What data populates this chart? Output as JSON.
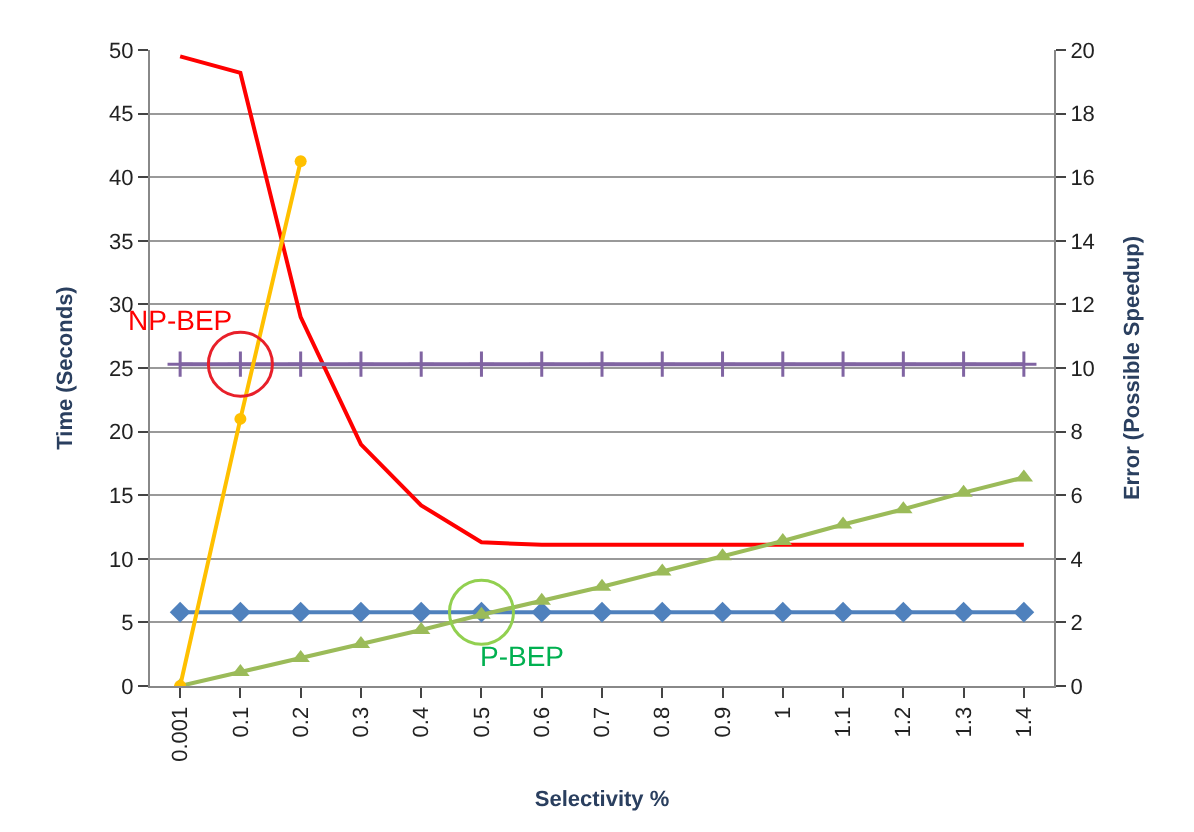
{
  "chart_data": {
    "type": "line",
    "xlabel": "Selectivity %",
    "ylabel": "Time (Seconds)",
    "y2label": "Error (Possible Speedup)",
    "categories": [
      "0.001",
      "0.1",
      "0.2",
      "0.3",
      "0.4",
      "0.5",
      "0.6",
      "0.7",
      "0.8",
      "0.9",
      "1",
      "1.1",
      "1.2",
      "1.3",
      "1.4"
    ],
    "series": [
      {
        "color": "#ff0000",
        "marker": "none",
        "values": [
          49.5,
          48.2,
          29,
          19,
          14.2,
          11.3,
          11.1,
          11.1,
          11.1,
          11.1,
          11.1,
          11.1,
          11.1,
          11.1,
          11.1
        ]
      },
      {
        "color": "#8064a2",
        "marker": "cross",
        "values": [
          25.3,
          25.3,
          25.3,
          25.3,
          25.3,
          25.3,
          25.3,
          25.3,
          25.3,
          25.3,
          25.3,
          25.3,
          25.3,
          25.3,
          25.3
        ]
      },
      {
        "color": "#4f81bd",
        "marker": "diamond",
        "values": [
          5.8,
          5.8,
          5.8,
          5.8,
          5.8,
          5.8,
          5.8,
          5.8,
          5.8,
          5.8,
          5.8,
          5.8,
          5.8,
          5.8,
          5.8
        ]
      },
      {
        "color": "#9bbb59",
        "marker": "triangle",
        "values": [
          0,
          1.1,
          2.2,
          3.3,
          4.4,
          5.6,
          6.7,
          7.8,
          9.0,
          10.2,
          11.4,
          12.7,
          13.9,
          15.2,
          16.4
        ]
      },
      {
        "color": "#ffc000",
        "marker": "circle",
        "axis": "y2",
        "values": [
          0,
          8.4,
          16.5,
          null,
          null,
          null,
          null,
          null,
          null,
          null,
          null,
          null,
          null,
          null,
          null
        ]
      }
    ],
    "ylim": [
      0,
      50
    ],
    "yticks": [
      0,
      5,
      10,
      15,
      20,
      25,
      30,
      35,
      40,
      45,
      50
    ],
    "y2lim": [
      0,
      20
    ],
    "y2ticks": [
      0,
      2,
      4,
      6,
      8,
      10,
      12,
      14,
      16,
      18,
      20
    ],
    "grid": "y",
    "annotations": [
      {
        "text": "NP-BEP",
        "x": "0.1",
        "y": 25.3
      },
      {
        "text": "P-BEP",
        "x": "0.5",
        "y": 5.8
      }
    ]
  }
}
